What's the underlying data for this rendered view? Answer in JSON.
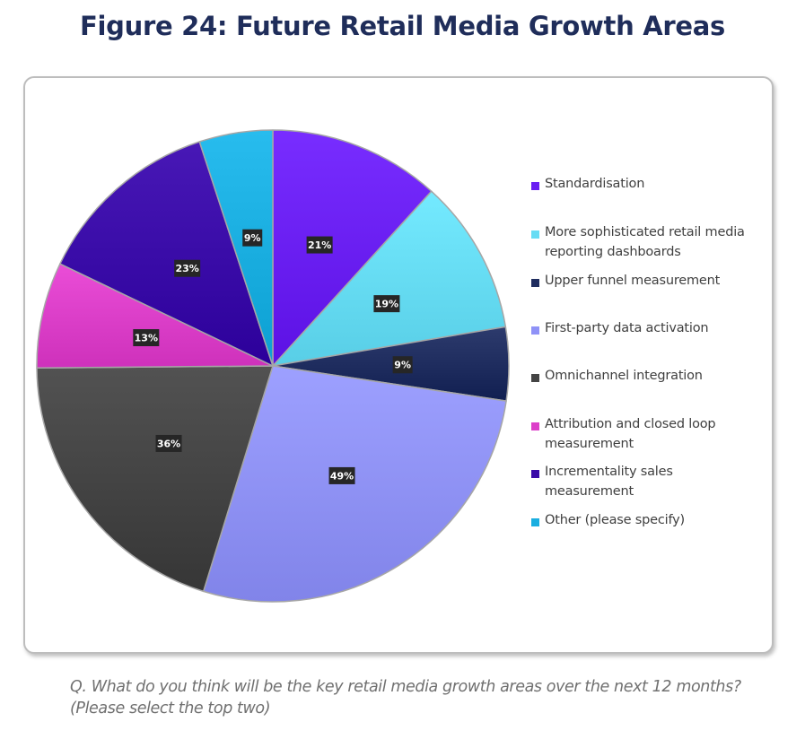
{
  "header": {
    "title": "Figure 24: Future Retail Media Growth Areas"
  },
  "caption": "Q. What do you think will be the key retail media growth areas over the next 12 months? (Please select the top two)",
  "chart_data": {
    "type": "pie",
    "title": "Figure 24: Future Retail Media Growth Areas",
    "start_angle": "12 o'clock",
    "direction": "clockwise",
    "legend_position": "right",
    "unit": "%",
    "slices": [
      {
        "label": "Standardisation",
        "value": 21,
        "display": "21%",
        "color": "#6a1ff2"
      },
      {
        "label": "More sophisticated retail media reporting dashboards",
        "value": 19,
        "display": "19%",
        "color": "#66dcf4"
      },
      {
        "label": "Upper funnel measurement",
        "value": 9,
        "display": "9%",
        "color": "#1f2d5f"
      },
      {
        "label": "First-party data activation",
        "value": 49,
        "display": "49%",
        "color": "#8f92f7"
      },
      {
        "label": "Omnichannel integration",
        "value": 36,
        "display": "36%",
        "color": "#444444"
      },
      {
        "label": "Attribution and closed loop measurement",
        "value": 13,
        "display": "13%",
        "color": "#dc3fc9"
      },
      {
        "label": "Incrementality sales measurement",
        "value": 23,
        "display": "23%",
        "color": "#3a0aa8"
      },
      {
        "label": "Other (please specify)",
        "value": 9,
        "display": "9%",
        "color": "#1aaee0"
      }
    ]
  },
  "legend": {
    "items": [
      {
        "lines": [
          "Standardisation"
        ]
      },
      {
        "lines": [
          "More sophisticated retail media",
          "reporting dashboards"
        ]
      },
      {
        "lines": [
          "Upper funnel measurement"
        ]
      },
      {
        "lines": [
          "First-party data activation"
        ]
      },
      {
        "lines": [
          "Omnichannel integration"
        ]
      },
      {
        "lines": [
          "Attribution and closed loop",
          "measurement"
        ]
      },
      {
        "lines": [
          "Incrementality sales",
          "measurement"
        ]
      },
      {
        "lines": [
          "Other (please specify)"
        ]
      }
    ]
  }
}
